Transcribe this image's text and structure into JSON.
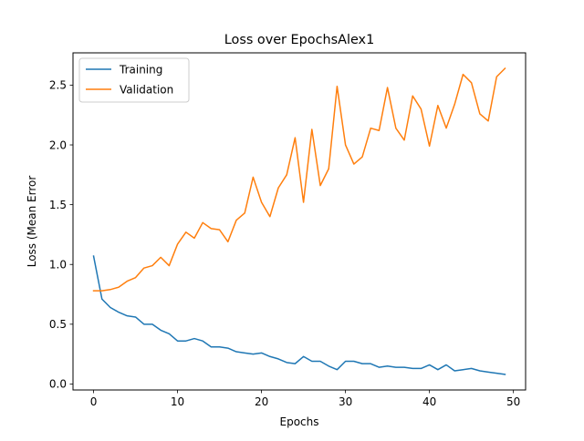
{
  "chart_data": {
    "type": "line",
    "title": "Loss over EpochsAlex1",
    "xlabel": "Epochs",
    "ylabel": "Loss (Mean Error",
    "xlim": [
      -2.45,
      51.45
    ],
    "ylim": [
      -0.05,
      2.77
    ],
    "xticks": [
      0,
      10,
      20,
      30,
      40,
      50
    ],
    "xtick_labels": [
      "0",
      "10",
      "20",
      "30",
      "40",
      "50"
    ],
    "yticks": [
      0.0,
      0.5,
      1.0,
      1.5,
      2.0,
      2.5
    ],
    "ytick_labels": [
      "0.0",
      "0.5",
      "1.0",
      "1.5",
      "2.0",
      "2.5"
    ],
    "grid": false,
    "legend_position": "top-left",
    "x": [
      0,
      1,
      2,
      3,
      4,
      5,
      6,
      7,
      8,
      9,
      10,
      11,
      12,
      13,
      14,
      15,
      16,
      17,
      18,
      19,
      20,
      21,
      22,
      23,
      24,
      25,
      26,
      27,
      28,
      29,
      30,
      31,
      32,
      33,
      34,
      35,
      36,
      37,
      38,
      39,
      40,
      41,
      42,
      43,
      44,
      45,
      46,
      47,
      48,
      49
    ],
    "series": [
      {
        "name": "Training",
        "color": "#1f77b4",
        "values": [
          1.07,
          0.71,
          0.64,
          0.6,
          0.57,
          0.56,
          0.5,
          0.5,
          0.45,
          0.42,
          0.36,
          0.36,
          0.38,
          0.36,
          0.31,
          0.31,
          0.3,
          0.27,
          0.26,
          0.25,
          0.26,
          0.23,
          0.21,
          0.18,
          0.17,
          0.23,
          0.19,
          0.19,
          0.15,
          0.12,
          0.19,
          0.19,
          0.17,
          0.17,
          0.14,
          0.15,
          0.14,
          0.14,
          0.13,
          0.13,
          0.16,
          0.12,
          0.16,
          0.11,
          0.12,
          0.13,
          0.11,
          0.1,
          0.09,
          0.08
        ]
      },
      {
        "name": "Validation",
        "color": "#ff7f0e",
        "values": [
          0.78,
          0.78,
          0.79,
          0.81,
          0.86,
          0.89,
          0.97,
          0.99,
          1.06,
          0.99,
          1.17,
          1.27,
          1.22,
          1.35,
          1.3,
          1.29,
          1.19,
          1.37,
          1.43,
          1.73,
          1.52,
          1.4,
          1.64,
          1.75,
          2.06,
          1.52,
          2.13,
          1.66,
          1.8,
          2.49,
          2.0,
          1.84,
          1.9,
          2.14,
          2.12,
          2.48,
          2.14,
          2.04,
          2.41,
          2.3,
          1.99,
          2.33,
          2.14,
          2.34,
          2.59,
          2.52,
          2.26,
          2.2,
          2.57,
          2.64
        ]
      }
    ]
  }
}
